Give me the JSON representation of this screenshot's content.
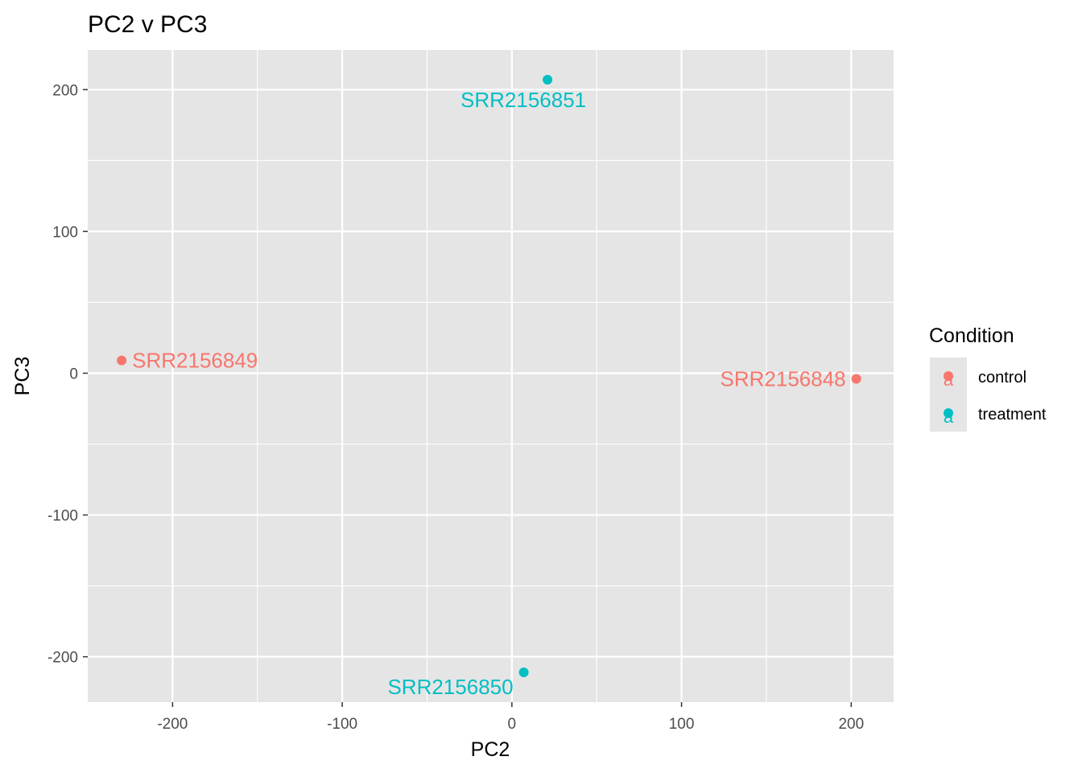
{
  "chart_data": {
    "type": "scatter",
    "title": "PC2 v PC3",
    "xlabel": "PC2",
    "ylabel": "PC3",
    "xlim": [
      -250,
      225
    ],
    "ylim": [
      -232,
      228
    ],
    "x_ticks": [
      -200,
      -100,
      0,
      100,
      200
    ],
    "y_ticks": [
      -200,
      -100,
      0,
      100,
      200
    ],
    "x_tick_labels": [
      "-200",
      "-100",
      "0",
      "100",
      "200"
    ],
    "y_tick_labels": [
      "-200",
      "-100",
      "0",
      "100",
      "200"
    ],
    "grid": true,
    "legend": {
      "title": "Condition",
      "placement": "right",
      "entries": [
        {
          "label": "control",
          "color": "#F8766D"
        },
        {
          "label": "treatment",
          "color": "#00BFC4"
        }
      ]
    },
    "points": [
      {
        "label": "SRR2156848",
        "x": 203,
        "y": -4,
        "group": "control",
        "color": "#F8766D",
        "label_side": "left"
      },
      {
        "label": "SRR2156849",
        "x": -230,
        "y": 9,
        "group": "control",
        "color": "#F8766D",
        "label_side": "right"
      },
      {
        "label": "SRR2156850",
        "x": 7,
        "y": -211,
        "group": "treatment",
        "color": "#00BFC4",
        "label_side": "below-left"
      },
      {
        "label": "SRR2156851",
        "x": 21,
        "y": 207,
        "group": "treatment",
        "color": "#00BFC4",
        "label_side": "below"
      }
    ]
  },
  "colors": {
    "panel_background": "#E5E5E5",
    "grid": "#FFFFFF",
    "control": "#F8766D",
    "treatment": "#00BFC4"
  },
  "legend_key_glyph": "a"
}
